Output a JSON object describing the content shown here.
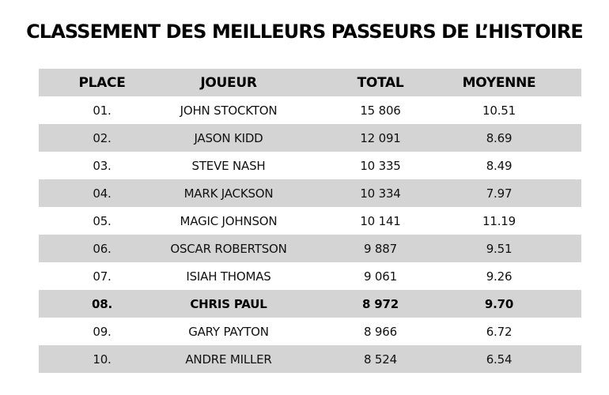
{
  "title": "CLASSEMENT DES MEILLEURS PASSEURS DE L’HISTOIRE",
  "columns": {
    "place": "PLACE",
    "player": "JOUEUR",
    "total": "TOTAL",
    "average": "MOYENNE"
  },
  "rows": [
    {
      "place": "01.",
      "player": "JOHN STOCKTON",
      "total": "15 806",
      "average": "10.51",
      "highlight": false
    },
    {
      "place": "02.",
      "player": "JASON KIDD",
      "total": "12 091",
      "average": "8.69",
      "highlight": false
    },
    {
      "place": "03.",
      "player": "STEVE NASH",
      "total": "10 335",
      "average": "8.49",
      "highlight": false
    },
    {
      "place": "04.",
      "player": "MARK JACKSON",
      "total": "10 334",
      "average": "7.97",
      "highlight": false
    },
    {
      "place": "05.",
      "player": "MAGIC JOHNSON",
      "total": "10 141",
      "average": "11.19",
      "highlight": false
    },
    {
      "place": "06.",
      "player": "OSCAR ROBERTSON",
      "total": "9 887",
      "average": "9.51",
      "highlight": false
    },
    {
      "place": "07.",
      "player": "ISIAH THOMAS",
      "total": "9 061",
      "average": "9.26",
      "highlight": false
    },
    {
      "place": "08.",
      "player": "CHRIS PAUL",
      "total": "8 972",
      "average": "9.70",
      "highlight": true
    },
    {
      "place": "09.",
      "player": "GARY PAYTON",
      "total": "8 966",
      "average": "6.72",
      "highlight": false
    },
    {
      "place": "10.",
      "player": "ANDRE MILLER",
      "total": "8 524",
      "average": "6.54",
      "highlight": false
    }
  ],
  "colors": {
    "stripe": "#d4d4d4",
    "background": "#ffffff",
    "text": "#111111"
  }
}
